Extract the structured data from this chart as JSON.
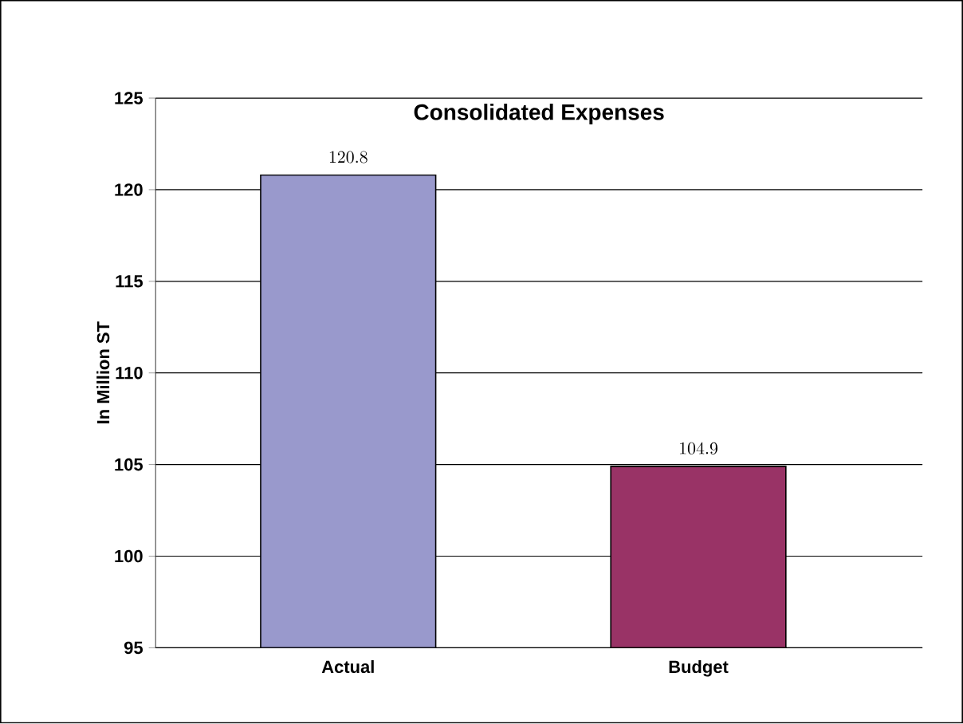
{
  "chart_data": {
    "type": "bar",
    "title": "Consolidated Expenses",
    "ylabel": "In Million ST",
    "categories": [
      "Actual",
      "Budget"
    ],
    "values": [
      120.8,
      104.9
    ],
    "colors": [
      "#9999cc",
      "#993366"
    ],
    "ylim": [
      95,
      125
    ],
    "yticks": [
      95,
      100,
      105,
      110,
      115,
      120,
      125
    ],
    "grid": "y",
    "data_labels": true
  }
}
